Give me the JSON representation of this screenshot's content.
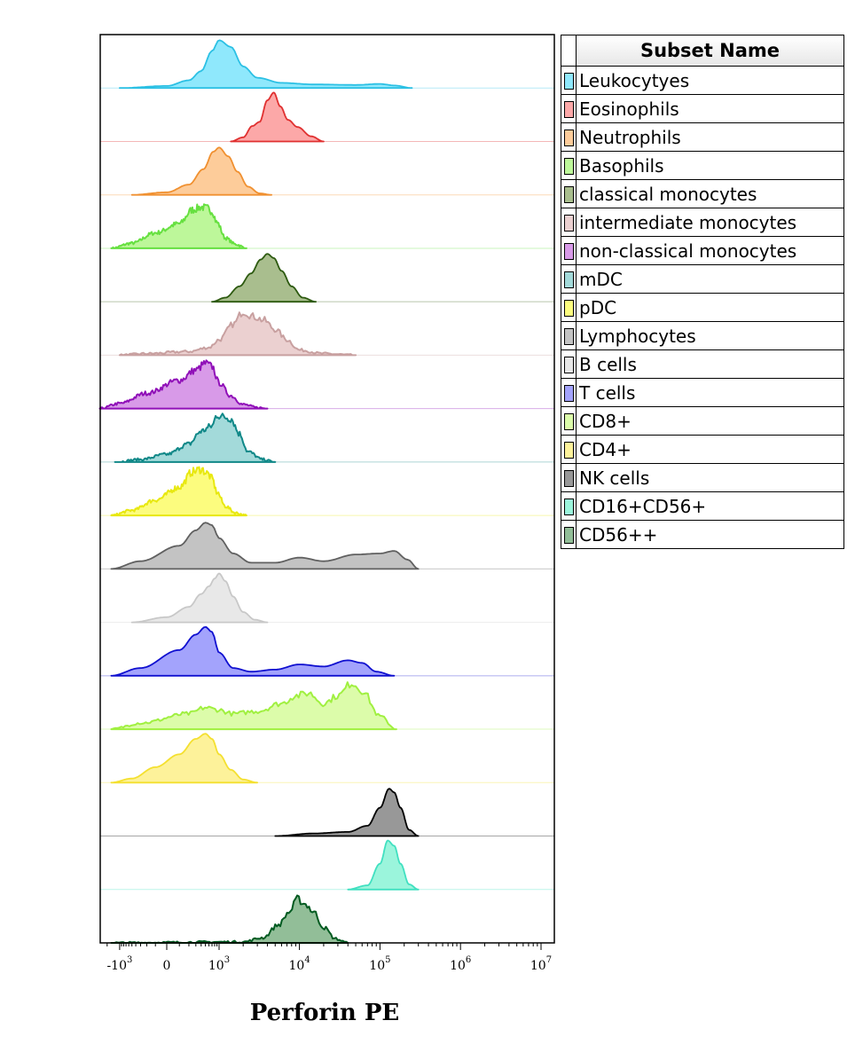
{
  "chart_data": {
    "type": "area",
    "xlabel": "Perforin PE",
    "x_scale": "biexponential",
    "xlim": [
      -3000,
      10000000
    ],
    "x_ticks": [
      {
        "value": -1000,
        "base": "-10",
        "exp": "3"
      },
      {
        "value": 0,
        "base": "0",
        "exp": ""
      },
      {
        "value": 1000,
        "base": "10",
        "exp": "3"
      },
      {
        "value": 10000,
        "base": "10",
        "exp": "4"
      },
      {
        "value": 100000,
        "base": "10",
        "exp": "5"
      },
      {
        "value": 1000000,
        "base": "10",
        "exp": "6"
      },
      {
        "value": 10000000,
        "base": "10",
        "exp": "7"
      }
    ],
    "legend": {
      "title": "Subset Name",
      "position": "right"
    },
    "series": [
      {
        "name": "Leukocytyes",
        "fill": "#8fe8fc",
        "stroke": "#2bc0e4",
        "jagged": false,
        "x": [
          -1000,
          0,
          200,
          400,
          700,
          1000,
          1400,
          2000,
          3000,
          6000,
          15000,
          50000,
          100000,
          150000,
          250000
        ],
        "y": [
          0,
          0.04,
          0.15,
          0.33,
          0.72,
          0.93,
          0.8,
          0.42,
          0.2,
          0.1,
          0.07,
          0.06,
          0.08,
          0.05,
          0
        ]
      },
      {
        "name": "Eosinophils",
        "fill": "#fca8a8",
        "stroke": "#e03030",
        "jagged": false,
        "x": [
          1400,
          2000,
          2600,
          3200,
          4000,
          4800,
          5800,
          7200,
          9500,
          14000,
          20000
        ],
        "y": [
          0,
          0.08,
          0.3,
          0.38,
          0.8,
          0.95,
          0.68,
          0.42,
          0.28,
          0.1,
          0
        ]
      },
      {
        "name": "Neutrophils",
        "fill": "#fdcc9a",
        "stroke": "#f09030",
        "jagged": false,
        "x": [
          -500,
          0,
          200,
          450,
          750,
          1000,
          1300,
          1700,
          2300,
          3200,
          4500
        ],
        "y": [
          0,
          0.05,
          0.2,
          0.5,
          0.84,
          0.92,
          0.75,
          0.45,
          0.16,
          0.03,
          0
        ]
      },
      {
        "name": "Basophils",
        "fill": "#bdf79a",
        "stroke": "#66e040",
        "jagged": true,
        "x": [
          -1600,
          -500,
          -100,
          100,
          250,
          400,
          550,
          700,
          900,
          1200,
          1600,
          2200
        ],
        "y": [
          0,
          0.1,
          0.3,
          0.48,
          0.75,
          0.8,
          0.78,
          0.72,
          0.5,
          0.2,
          0.08,
          0
        ]
      },
      {
        "name": "classical monocytes",
        "fill": "#a9be8e",
        "stroke": "#2d5a10",
        "jagged": false,
        "x": [
          700,
          1200,
          1800,
          2500,
          3300,
          4000,
          4800,
          6000,
          8000,
          11000,
          16000
        ],
        "y": [
          0,
          0.08,
          0.3,
          0.55,
          0.82,
          0.93,
          0.85,
          0.6,
          0.3,
          0.08,
          0
        ]
      },
      {
        "name": "intermediate monocytes",
        "fill": "#ebd0d0",
        "stroke": "#c8a0a0",
        "jagged": true,
        "x": [
          -1000,
          -200,
          200,
          600,
          1000,
          1500,
          2000,
          2700,
          3600,
          5000,
          7000,
          10000,
          20000,
          50000
        ],
        "y": [
          0,
          0.03,
          0.07,
          0.15,
          0.3,
          0.6,
          0.85,
          0.75,
          0.68,
          0.5,
          0.3,
          0.1,
          0.03,
          0
        ]
      },
      {
        "name": "non-classical monocytes",
        "fill": "#d89ae8",
        "stroke": "#9010b8",
        "jagged": true,
        "x": [
          -3000,
          -1000,
          -200,
          100,
          300,
          500,
          700,
          1000,
          1400,
          2000,
          3000,
          4000
        ],
        "y": [
          0,
          0.1,
          0.3,
          0.55,
          0.75,
          0.88,
          0.82,
          0.5,
          0.25,
          0.08,
          0.02,
          0
        ]
      },
      {
        "name": "mDC",
        "fill": "#a3dada",
        "stroke": "#108888",
        "jagged": true,
        "x": [
          -1300,
          -300,
          0,
          200,
          400,
          700,
          900,
          1100,
          1400,
          1800,
          2300,
          3500,
          5000
        ],
        "y": [
          0,
          0.05,
          0.15,
          0.35,
          0.6,
          0.7,
          0.92,
          0.88,
          0.85,
          0.55,
          0.2,
          0.05,
          0
        ]
      },
      {
        "name": "pDC",
        "fill": "#fcfc7e",
        "stroke": "#e8e810",
        "jagged": true,
        "x": [
          -1600,
          -500,
          -100,
          100,
          250,
          400,
          550,
          700,
          900,
          1200,
          1600,
          2200
        ],
        "y": [
          0,
          0.1,
          0.3,
          0.55,
          0.85,
          0.9,
          0.82,
          0.72,
          0.45,
          0.18,
          0.05,
          0
        ]
      },
      {
        "name": "Lymphocytes",
        "fill": "#c3c3c3",
        "stroke": "#606060",
        "jagged": false,
        "x": [
          -1600,
          -300,
          100,
          300,
          500,
          700,
          1000,
          1500,
          2500,
          5000,
          10000,
          20000,
          50000,
          100000,
          150000,
          220000,
          300000
        ],
        "y": [
          0,
          0.15,
          0.45,
          0.75,
          0.9,
          0.85,
          0.6,
          0.3,
          0.12,
          0.12,
          0.22,
          0.15,
          0.28,
          0.3,
          0.35,
          0.18,
          0
        ]
      },
      {
        "name": "B cells",
        "fill": "#e8e8e8",
        "stroke": "#c8c8c8",
        "jagged": false,
        "x": [
          -500,
          0,
          200,
          400,
          600,
          800,
          1000,
          1200,
          1500,
          2000,
          2800,
          4000
        ],
        "y": [
          0,
          0.1,
          0.3,
          0.55,
          0.7,
          0.85,
          0.95,
          0.8,
          0.5,
          0.2,
          0.05,
          0
        ]
      },
      {
        "name": "T cells",
        "fill": "#a3a3fc",
        "stroke": "#1010d0",
        "jagged": false,
        "x": [
          -1600,
          -300,
          100,
          300,
          500,
          700,
          1000,
          1500,
          2500,
          5000,
          10000,
          20000,
          40000,
          60000,
          90000,
          150000
        ],
        "y": [
          0,
          0.15,
          0.5,
          0.8,
          0.95,
          0.85,
          0.45,
          0.15,
          0.08,
          0.12,
          0.22,
          0.18,
          0.3,
          0.25,
          0.08,
          0
        ]
      },
      {
        "name": "CD8+",
        "fill": "#dcfcaa",
        "stroke": "#a0f040",
        "jagged": true,
        "x": [
          -1600,
          -300,
          200,
          500,
          900,
          1500,
          3000,
          6000,
          9000,
          13000,
          20000,
          30000,
          45000,
          60000,
          100000,
          160000
        ],
        "y": [
          0,
          0.12,
          0.3,
          0.42,
          0.38,
          0.3,
          0.35,
          0.5,
          0.65,
          0.7,
          0.5,
          0.65,
          0.9,
          0.75,
          0.25,
          0
        ]
      },
      {
        "name": "CD4+",
        "fill": "#fdf29a",
        "stroke": "#f4e030",
        "jagged": false,
        "x": [
          -1600,
          -500,
          -100,
          100,
          300,
          500,
          700,
          1000,
          1400,
          2000,
          3000
        ],
        "y": [
          0,
          0.08,
          0.3,
          0.55,
          0.85,
          0.95,
          0.85,
          0.55,
          0.25,
          0.06,
          0
        ]
      },
      {
        "name": "NK cells",
        "fill": "#989898",
        "stroke": "#000000",
        "jagged": false,
        "x": [
          5000,
          15000,
          40000,
          70000,
          100000,
          130000,
          150000,
          180000,
          230000,
          300000
        ],
        "y": [
          0,
          0.05,
          0.08,
          0.2,
          0.55,
          0.92,
          0.85,
          0.55,
          0.12,
          0
        ]
      },
      {
        "name": "CD16+CD56+",
        "fill": "#9bf5dc",
        "stroke": "#40e0c0",
        "jagged": false,
        "x": [
          40000,
          70000,
          100000,
          125000,
          150000,
          180000,
          230000,
          300000
        ],
        "y": [
          0,
          0.08,
          0.5,
          0.95,
          0.85,
          0.5,
          0.1,
          0
        ]
      },
      {
        "name": "CD56++",
        "fill": "#92be98",
        "stroke": "#005a20",
        "jagged": true,
        "x": [
          -1600,
          2000,
          3500,
          5500,
          7500,
          9500,
          12000,
          15000,
          20000,
          28000,
          40000
        ],
        "y": [
          0,
          0.02,
          0.1,
          0.35,
          0.6,
          0.85,
          0.75,
          0.6,
          0.3,
          0.08,
          0
        ]
      }
    ]
  }
}
